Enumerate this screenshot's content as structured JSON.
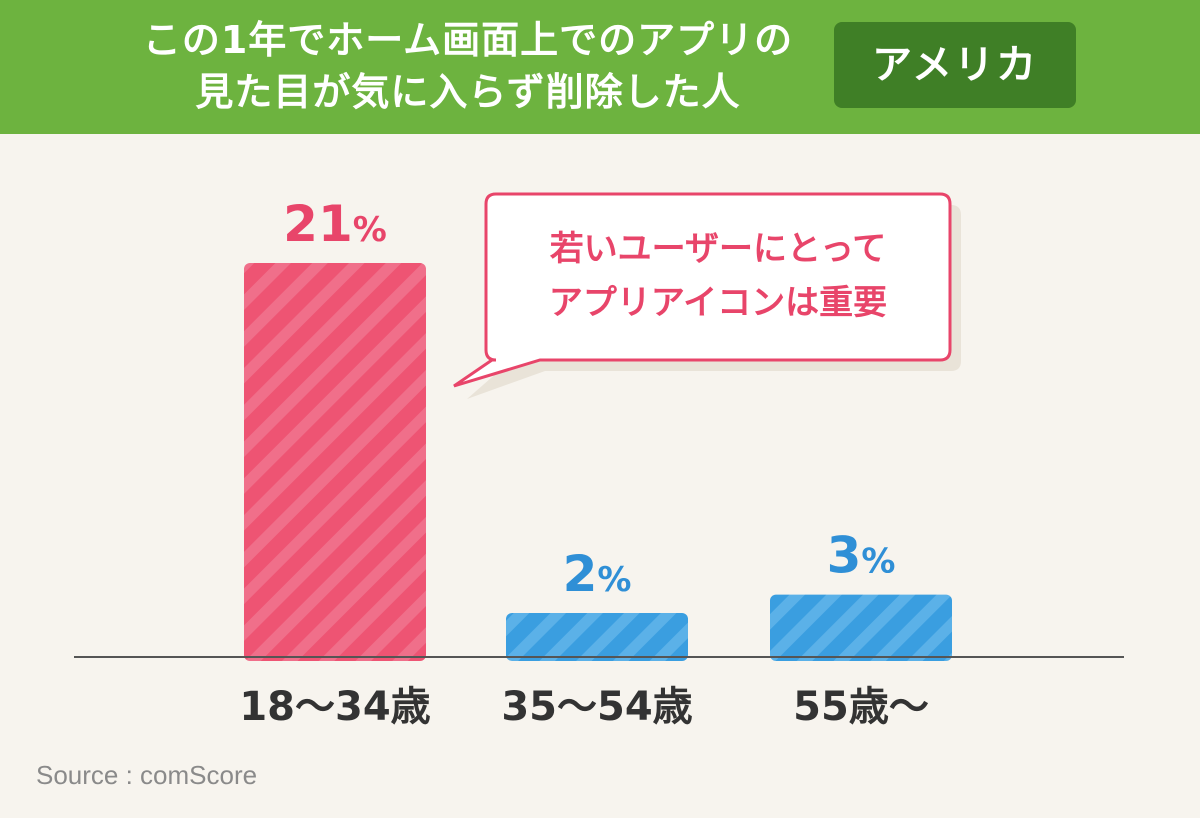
{
  "header": {
    "title_line1": "この1年でホーム画面上でのアプリの",
    "title_line2": "見た目が気に入らず削除した人",
    "region": "アメリカ"
  },
  "chart_data": {
    "type": "bar",
    "categories": [
      "18〜34歳",
      "35〜54歳",
      "55歳〜"
    ],
    "values": [
      21,
      2,
      3
    ],
    "value_labels": [
      "21%",
      "2%",
      "3%"
    ],
    "ylim": [
      0,
      21
    ],
    "grid": false,
    "title": "",
    "xlabel": "",
    "ylabel": ""
  },
  "callout": {
    "line1": "若いユーザーにとって",
    "line2": "アプリアイコンは重要"
  },
  "source": "Source : comScore",
  "colors": {
    "header_bg": "#6db33f",
    "badge_bg": "#3f7f26",
    "highlight": "#ee5473",
    "highlight_text": "#e8456a",
    "secondary": "#3a9ee0",
    "secondary_text": "#2f8fd6",
    "axis": "#555555",
    "category_text": "#333333"
  }
}
